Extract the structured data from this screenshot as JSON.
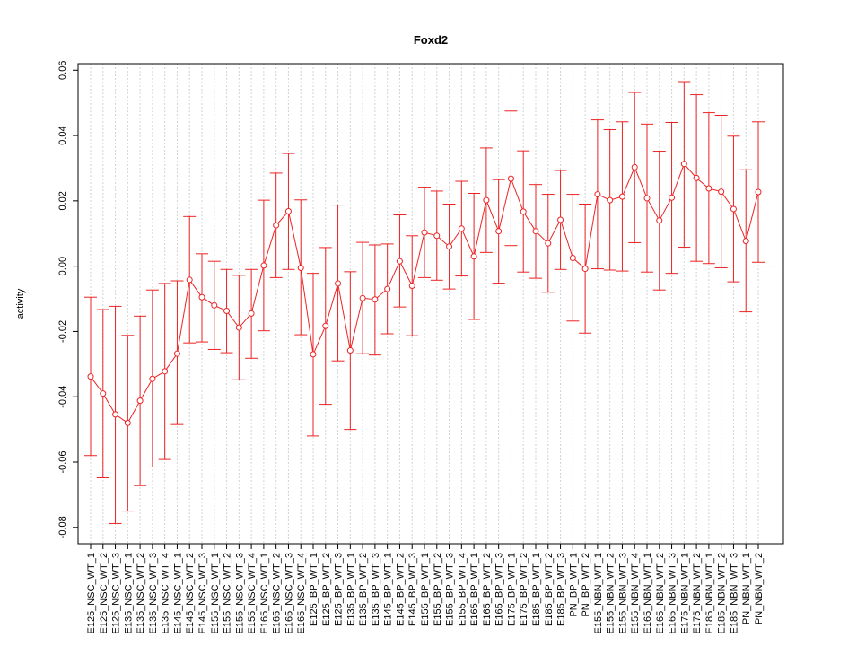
{
  "chart_data": {
    "type": "line",
    "title": "Foxd2",
    "xlabel": "",
    "ylabel": "activity",
    "ylim": [
      -0.085,
      0.062
    ],
    "yticks": [
      -0.08,
      -0.06,
      -0.04,
      -0.02,
      0.0,
      0.02,
      0.04,
      0.06
    ],
    "ytick_labels": [
      "-0.08",
      "-0.06",
      "-0.04",
      "-0.02",
      "0.00",
      "0.02",
      "0.04",
      "0.06"
    ],
    "grid": true,
    "color": "#ee2222",
    "categories": [
      "E125_NSC_WT_1",
      "E125_NSC_WT_2",
      "E125_NSC_WT_3",
      "E135_NSC_WT_1",
      "E135_NSC_WT_2",
      "E135_NSC_WT_3",
      "E135_NSC_WT_4",
      "E145_NSC_WT_1",
      "E145_NSC_WT_2",
      "E145_NSC_WT_3",
      "E155_NSC_WT_1",
      "E155_NSC_WT_2",
      "E155_NSC_WT_3",
      "E155_NSC_WT_4",
      "E165_NSC_WT_1",
      "E165_NSC_WT_2",
      "E165_NSC_WT_3",
      "E165_NSC_WT_4",
      "E125_BP_WT_1",
      "E125_BP_WT_2",
      "E125_BP_WT_3",
      "E135_BP_WT_1",
      "E135_BP_WT_2",
      "E135_BP_WT_3",
      "E145_BP_WT_1",
      "E145_BP_WT_2",
      "E145_BP_WT_3",
      "E155_BP_WT_1",
      "E155_BP_WT_2",
      "E155_BP_WT_3",
      "E155_BP_WT_4",
      "E165_BP_WT_1",
      "E165_BP_WT_2",
      "E165_BP_WT_3",
      "E175_BP_WT_1",
      "E175_BP_WT_2",
      "E185_BP_WT_1",
      "E185_BP_WT_2",
      "E185_BP_WT_3",
      "PN_BP_WT_1",
      "PN_BP_WT_2",
      "E155_NBN_WT_1",
      "E155_NBN_WT_2",
      "E155_NBN_WT_3",
      "E155_NBN_WT_4",
      "E165_NBN_WT_1",
      "E165_NBN_WT_2",
      "E165_NBN_WT_3",
      "E175_NBN_WT_1",
      "E175_NBN_WT_2",
      "E185_NBN_WT_1",
      "E185_NBN_WT_2",
      "E185_NBN_WT_3",
      "PN_NBN_WT_1",
      "PN_NBN_WT_2"
    ],
    "values": [
      -0.0338,
      -0.039,
      -0.0454,
      -0.048,
      -0.0412,
      -0.0345,
      -0.0322,
      -0.0268,
      -0.0042,
      -0.0095,
      -0.012,
      -0.0137,
      -0.0188,
      -0.0145,
      0.0002,
      0.0125,
      0.0168,
      -0.0005,
      -0.027,
      -0.0183,
      -0.0053,
      -0.0258,
      -0.0098,
      -0.0102,
      -0.007,
      0.0015,
      -0.006,
      0.0103,
      0.0093,
      0.006,
      0.0115,
      0.003,
      0.0202,
      0.0107,
      0.0268,
      0.0167,
      0.0107,
      0.007,
      0.0142,
      0.0025,
      -0.0008,
      0.022,
      0.0202,
      0.0213,
      0.0303,
      0.0208,
      0.014,
      0.021,
      0.0313,
      0.027,
      0.0238,
      0.0228,
      0.0175,
      0.0077,
      0.0227
    ],
    "upper": [
      -0.0095,
      -0.0133,
      -0.0123,
      -0.0212,
      -0.0153,
      -0.0073,
      -0.0053,
      -0.0045,
      0.0152,
      0.0038,
      0.0015,
      -0.001,
      -0.0028,
      -0.001,
      0.0202,
      0.0285,
      0.0345,
      0.0203,
      -0.0022,
      0.0057,
      0.0187,
      -0.0017,
      0.0073,
      0.0065,
      0.0068,
      0.0157,
      0.0093,
      0.0242,
      0.023,
      0.019,
      0.026,
      0.0223,
      0.0362,
      0.0265,
      0.0475,
      0.0353,
      0.025,
      0.022,
      0.0293,
      0.022,
      0.019,
      0.0448,
      0.0418,
      0.0442,
      0.0532,
      0.0435,
      0.0352,
      0.044,
      0.0565,
      0.0525,
      0.047,
      0.0462,
      0.0398,
      0.0295,
      0.0442
    ],
    "lower": [
      -0.058,
      -0.0648,
      -0.0788,
      -0.075,
      -0.0672,
      -0.0615,
      -0.0592,
      -0.0485,
      -0.0235,
      -0.0232,
      -0.0255,
      -0.0265,
      -0.0348,
      -0.0282,
      -0.0198,
      -0.0035,
      -0.001,
      -0.021,
      -0.052,
      -0.0423,
      -0.029,
      -0.05,
      -0.0268,
      -0.0272,
      -0.0207,
      -0.0125,
      -0.0213,
      -0.0035,
      -0.0043,
      -0.007,
      -0.003,
      -0.0163,
      0.0042,
      -0.0052,
      0.0063,
      -0.0018,
      -0.0037,
      -0.008,
      -0.001,
      -0.0168,
      -0.0205,
      -0.0008,
      -0.0012,
      -0.0015,
      0.0072,
      -0.0018,
      -0.0073,
      -0.0022,
      0.0058,
      0.0015,
      0.0008,
      -0.0005,
      -0.0048,
      -0.014,
      0.0012
    ]
  }
}
